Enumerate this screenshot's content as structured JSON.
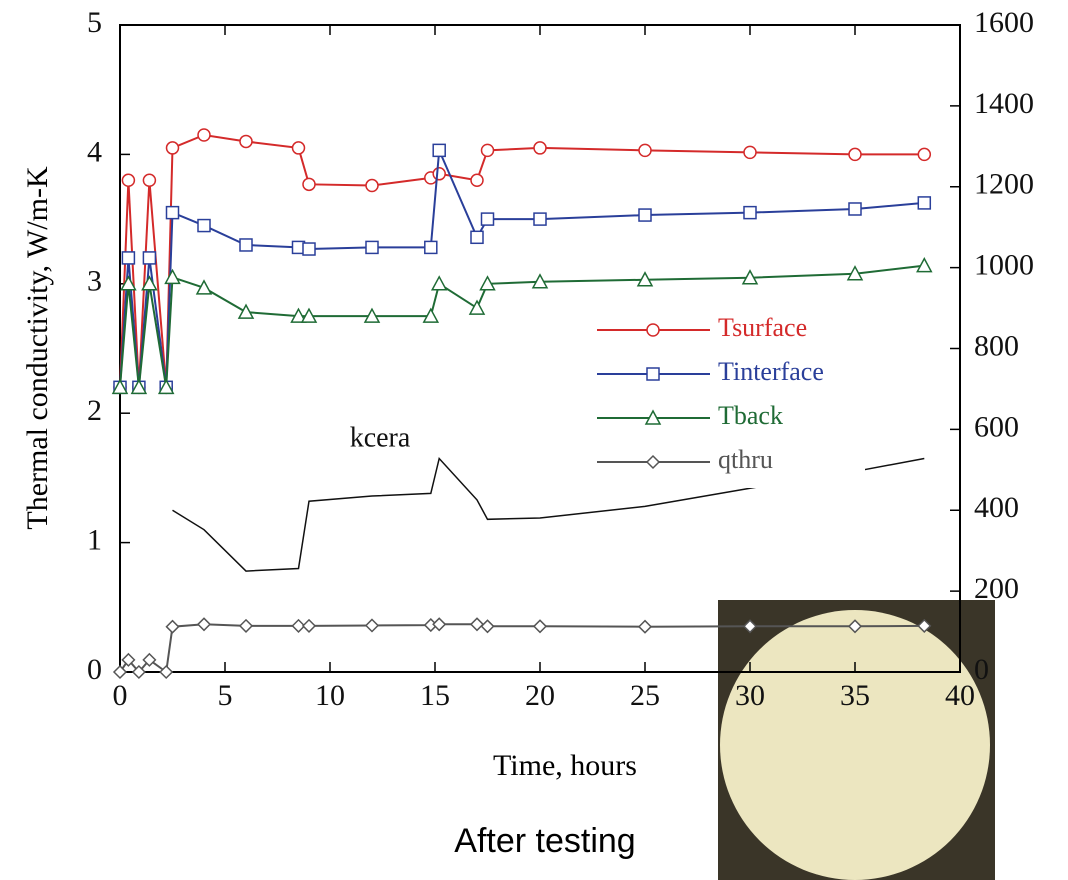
{
  "chart_data": {
    "type": "line",
    "xlabel": "Time, hours",
    "ylabel": "Thermal conductivity, W/m-K",
    "annotation": "After testing",
    "xlim": [
      0,
      40
    ],
    "xticks": [
      0,
      5,
      10,
      15,
      20,
      25,
      30,
      35,
      40
    ],
    "ylim": [
      0,
      5
    ],
    "yticks": [
      0,
      1,
      2,
      3,
      4,
      5
    ],
    "y2lim": [
      0,
      1600
    ],
    "y2ticks": [
      0,
      200,
      400,
      600,
      800,
      1000,
      1200,
      1400,
      1600
    ],
    "x": [
      0,
      0.4,
      0.9,
      1.4,
      2.2,
      2.5,
      4,
      6,
      8.5,
      9,
      12,
      14.8,
      15.2,
      17,
      17.5,
      20,
      25,
      30,
      35,
      38.3
    ],
    "series": [
      {
        "name": "Tsurface",
        "color": "#d42a2a",
        "marker": "circle",
        "axis": "y2",
        "values": [
          704,
          1216,
          704,
          1216,
          704,
          1296,
          1328,
          1312,
          1296,
          1206,
          1203,
          1222,
          1232,
          1216,
          1290,
          1296,
          1290,
          1285,
          1280,
          1280
        ]
      },
      {
        "name": "Tinterface",
        "color": "#2a3f9a",
        "marker": "square",
        "axis": "y2",
        "values": [
          704,
          1024,
          704,
          1024,
          704,
          1136,
          1104,
          1056,
          1050,
          1046,
          1050,
          1050,
          1290,
          1075,
          1120,
          1120,
          1130,
          1136,
          1145,
          1160
        ]
      },
      {
        "name": "Tback",
        "color": "#1f6b35",
        "marker": "triangle",
        "axis": "y2",
        "values": [
          704,
          960,
          704,
          960,
          704,
          976,
          950,
          890,
          880,
          880,
          880,
          880,
          960,
          900,
          960,
          965,
          970,
          975,
          985,
          1005
        ]
      },
      {
        "name": "qthru",
        "color": "#555555",
        "marker": "diamond",
        "axis": "y2",
        "values": [
          0,
          30,
          0,
          30,
          0,
          112,
          118,
          114,
          114,
          114,
          115,
          116,
          118,
          118,
          113,
          113,
          112,
          113,
          113,
          114
        ]
      },
      {
        "name": "kcera",
        "color": "#111111",
        "in_legend": false,
        "values": [
          null,
          null,
          null,
          null,
          null,
          1.25,
          1.1,
          0.78,
          0.8,
          1.32,
          1.36,
          1.38,
          1.65,
          1.33,
          1.18,
          1.19,
          1.28,
          1.42,
          1.55,
          1.65
        ]
      }
    ]
  }
}
